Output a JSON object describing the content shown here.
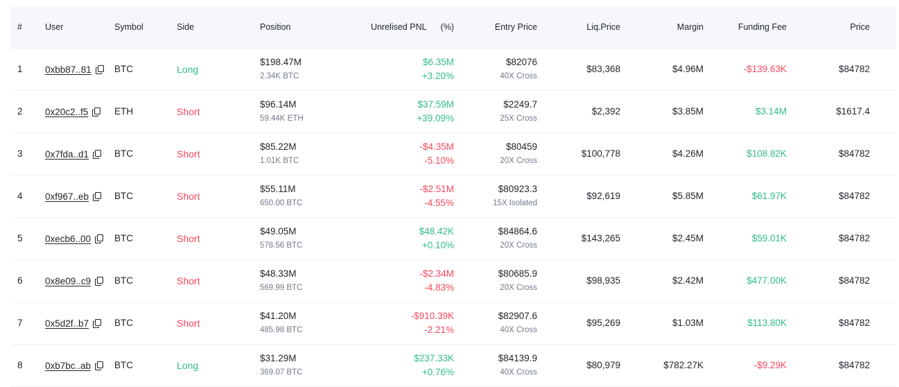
{
  "columns": {
    "index": "#",
    "user": "User",
    "symbol": "Symbol",
    "side": "Side",
    "position": "Position",
    "pnl": "Unrelised PNL",
    "pnl_pct": "(%)",
    "entry": "Entry Price",
    "liq": "Liq.Price",
    "margin": "Margin",
    "fee": "Funding Fee",
    "price": "Price"
  },
  "colors": {
    "positive": "#2ebd85",
    "negative": "#f6465d",
    "header_bg": "#f5f7fa",
    "muted_text": "#707a8a"
  },
  "icons": {
    "copy": "copy-icon"
  },
  "rows": [
    {
      "index": "1",
      "user": "0xbb87..81",
      "symbol": "BTC",
      "side": "Long",
      "side_type": "long",
      "position_value": "$198.47M",
      "position_size": "2.34K BTC",
      "pnl": "$6.35M",
      "pnl_pct": "+3.20%",
      "pnl_sign": "pos",
      "entry_price": "$82076",
      "leverage": "40X Cross",
      "liq_price": "$83,368",
      "margin": "$4.96M",
      "funding_fee": "-$139.63K",
      "fee_sign": "neg",
      "price": "$84782"
    },
    {
      "index": "2",
      "user": "0x20c2..f5",
      "symbol": "ETH",
      "side": "Short",
      "side_type": "short",
      "position_value": "$96.14M",
      "position_size": "59.44K ETH",
      "pnl": "$37.59M",
      "pnl_pct": "+39.09%",
      "pnl_sign": "pos",
      "entry_price": "$2249.7",
      "leverage": "25X Cross",
      "liq_price": "$2,392",
      "margin": "$3.85M",
      "funding_fee": "$3.14M",
      "fee_sign": "pos",
      "price": "$1617.4"
    },
    {
      "index": "3",
      "user": "0x7fda..d1",
      "symbol": "BTC",
      "side": "Short",
      "side_type": "short",
      "position_value": "$85.22M",
      "position_size": "1.01K BTC",
      "pnl": "-$4.35M",
      "pnl_pct": "-5.10%",
      "pnl_sign": "neg",
      "entry_price": "$80459",
      "leverage": "20X Cross",
      "liq_price": "$100,778",
      "margin": "$4.26M",
      "funding_fee": "$108.82K",
      "fee_sign": "pos",
      "price": "$84782"
    },
    {
      "index": "4",
      "user": "0xf967..eb",
      "symbol": "BTC",
      "side": "Short",
      "side_type": "short",
      "position_value": "$55.11M",
      "position_size": "650.00 BTC",
      "pnl": "-$2.51M",
      "pnl_pct": "-4.55%",
      "pnl_sign": "neg",
      "entry_price": "$80923.3",
      "leverage": "15X Isolated",
      "liq_price": "$92,619",
      "margin": "$5.85M",
      "funding_fee": "$61.97K",
      "fee_sign": "pos",
      "price": "$84782"
    },
    {
      "index": "5",
      "user": "0xecb6..00",
      "symbol": "BTC",
      "side": "Short",
      "side_type": "short",
      "position_value": "$49.05M",
      "position_size": "578.56 BTC",
      "pnl": "$48.42K",
      "pnl_pct": "+0.10%",
      "pnl_sign": "pos",
      "entry_price": "$84864.6",
      "leverage": "20X Cross",
      "liq_price": "$143,265",
      "margin": "$2.45M",
      "funding_fee": "$59.01K",
      "fee_sign": "pos",
      "price": "$84782"
    },
    {
      "index": "6",
      "user": "0x8e09..c9",
      "symbol": "BTC",
      "side": "Short",
      "side_type": "short",
      "position_value": "$48.33M",
      "position_size": "569.99 BTC",
      "pnl": "-$2.34M",
      "pnl_pct": "-4.83%",
      "pnl_sign": "neg",
      "entry_price": "$80685.9",
      "leverage": "20X Cross",
      "liq_price": "$98,935",
      "margin": "$2.42M",
      "funding_fee": "$477.00K",
      "fee_sign": "pos",
      "price": "$84782"
    },
    {
      "index": "7",
      "user": "0x5d2f..b7",
      "symbol": "BTC",
      "side": "Short",
      "side_type": "short",
      "position_value": "$41.20M",
      "position_size": "485.98 BTC",
      "pnl": "-$910.39K",
      "pnl_pct": "-2.21%",
      "pnl_sign": "neg",
      "entry_price": "$82907.6",
      "leverage": "40X Cross",
      "liq_price": "$95,269",
      "margin": "$1.03M",
      "funding_fee": "$113.80K",
      "fee_sign": "pos",
      "price": "$84782"
    },
    {
      "index": "8",
      "user": "0xb7bc..ab",
      "symbol": "BTC",
      "side": "Long",
      "side_type": "long",
      "position_value": "$31.29M",
      "position_size": "369.07 BTC",
      "pnl": "$237.33K",
      "pnl_pct": "+0.76%",
      "pnl_sign": "pos",
      "entry_price": "$84139.9",
      "leverage": "40X Cross",
      "liq_price": "$80,979",
      "margin": "$782.27K",
      "funding_fee": "-$9.29K",
      "fee_sign": "neg",
      "price": "$84782"
    }
  ]
}
